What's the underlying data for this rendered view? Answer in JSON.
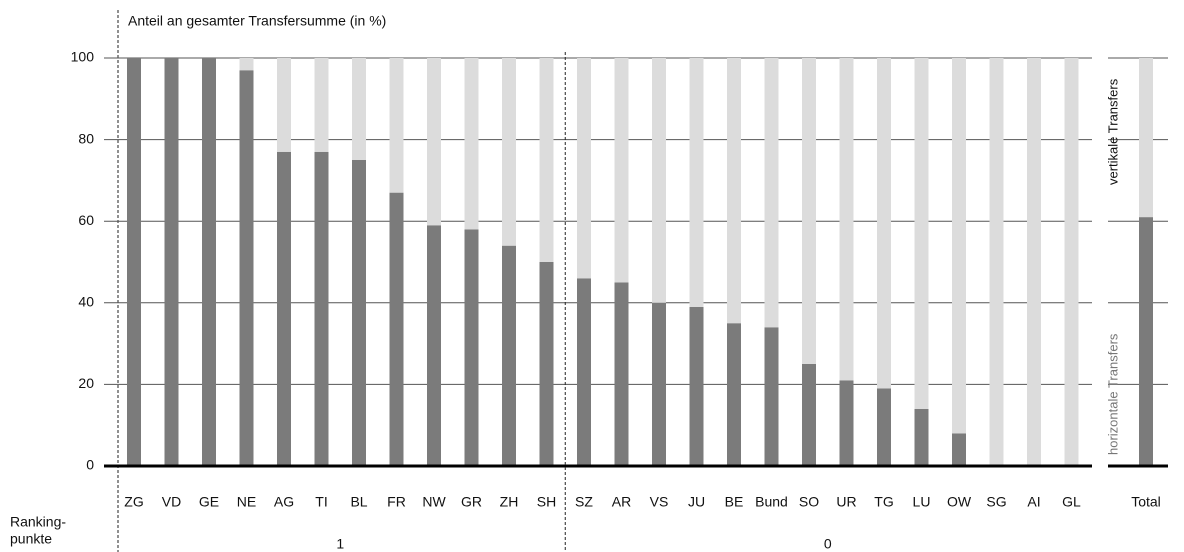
{
  "chart_data": {
    "type": "stacked_bar",
    "title": "Anteil an gesamter Transfersumme (in %)",
    "categories": [
      "ZG",
      "VD",
      "GE",
      "NE",
      "AG",
      "TI",
      "BL",
      "FR",
      "NW",
      "GR",
      "ZH",
      "SH",
      "SZ",
      "AR",
      "VS",
      "JU",
      "BE",
      "Bund",
      "SO",
      "UR",
      "TG",
      "LU",
      "OW",
      "SG",
      "AI",
      "GL",
      "Total"
    ],
    "series": [
      {
        "name": "horizontale Transfers",
        "color": "#7b7b7b",
        "values": [
          100,
          100,
          100,
          97,
          77,
          77,
          75,
          67,
          59,
          58,
          54,
          50,
          46,
          45,
          40,
          39,
          35,
          34,
          25,
          21,
          19,
          14,
          8,
          0,
          0,
          0,
          61
        ]
      },
      {
        "name": "vertikale Transfers",
        "color": "#dcdcdc",
        "values": [
          0,
          0,
          0,
          3,
          23,
          23,
          25,
          33,
          41,
          42,
          46,
          50,
          54,
          55,
          60,
          61,
          65,
          66,
          75,
          79,
          81,
          86,
          92,
          100,
          100,
          100,
          39
        ]
      }
    ],
    "ylim": [
      0,
      100
    ],
    "yticks": [
      0,
      20,
      40,
      60,
      80,
      100
    ],
    "grid": true,
    "ranking_label": [
      "Ranking-",
      "punkte"
    ],
    "ranking_groups": [
      {
        "label": "1",
        "size": 12
      },
      {
        "label": "0",
        "size": 14
      }
    ]
  }
}
